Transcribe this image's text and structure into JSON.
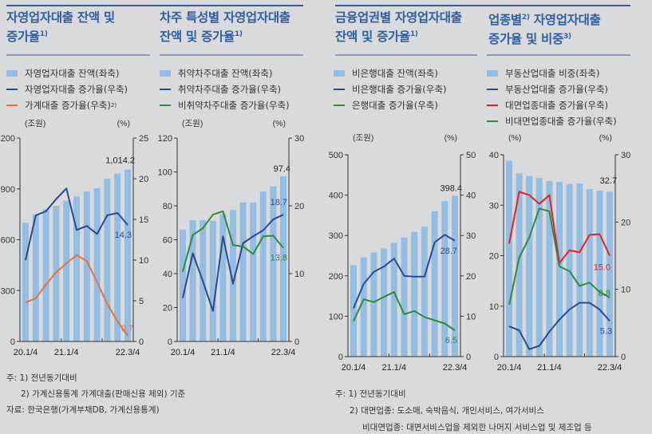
{
  "panels": [
    {
      "title_l1": "자영업자대출 잔액 및",
      "title_l2": "증가율",
      "title_sup": "1)",
      "legend": [
        {
          "label": "자영업자대출 잔액(좌축)",
          "sup": ""
        },
        {
          "label": "자영업자대출 증가율(우축)",
          "sup": ""
        },
        {
          "label": "가계대출 증가율(우축)",
          "sup": "2)"
        }
      ]
    },
    {
      "title_l1": "차주 특성별 자영업자대출",
      "title_l2": "잔액 및 증가율",
      "title_sup": "1)",
      "legend": [
        {
          "label": "취약차주대출 잔액(좌축)",
          "sup": ""
        },
        {
          "label": "취약차주대출 증가율(우축)",
          "sup": ""
        },
        {
          "label": "비취약차주대출 증가율(우축)",
          "sup": ""
        }
      ]
    },
    {
      "title_l1": "금융업권별 자영업자대출",
      "title_l2": "잔액 및 증가율",
      "title_sup": "1)",
      "legend": [
        {
          "label": "비은행대출 잔액(좌축)",
          "sup": ""
        },
        {
          "label": "비은행대출 증가율(우축)",
          "sup": ""
        },
        {
          "label": "은행대출 증가율(우축)",
          "sup": ""
        }
      ]
    },
    {
      "title_l1": "업종별",
      "title_l1_sup": "2)",
      "title_l1b": " 자영업자대출",
      "title_l2": "증가율 및 비중",
      "title_sup": "3)",
      "legend": [
        {
          "label": "부동산업대출 비중(좌축)",
          "sup": ""
        },
        {
          "label": "부동산업대출 증가율(우축)",
          "sup": ""
        },
        {
          "label": "대면업종대출 증가율(우축)",
          "sup": ""
        },
        {
          "label": "비대면업종대출 증가율(우축)",
          "sup": ""
        }
      ]
    }
  ],
  "notes_left": [
    "주: 1) 전년동기대비",
    "2) 가계신용통계 가계대출(판매신용 제외) 기준",
    "자료: 한국은행(가계부채DB, 가계신용통계)"
  ],
  "notes_right": [
    "주: 1) 전년동기대비",
    "2) 대면업종: 도소매, 숙박음식, 개인서비스, 여가서비스",
    "비대면업종: 대면서비스업을 제외한 나머지 서비스업 및 제조업 등"
  ],
  "colors": {
    "bar": "#93bde3",
    "navy": "#2b4a8b",
    "orange": "#e2733f",
    "green": "#2e8a3e",
    "red": "#e3202c",
    "title": "#2f5fa0"
  },
  "chart_data": [
    {
      "type": "bar+line",
      "left_unit": "(조원)",
      "right_unit": "(%)",
      "ylim_left": [
        0,
        1200
      ],
      "ylim_right": [
        0,
        25
      ],
      "left_ticks": [
        "0",
        "300",
        "600",
        "900",
        "1,200"
      ],
      "right_ticks": [
        "0",
        "5",
        "10",
        "15",
        "20",
        "25"
      ],
      "x_tick_labels": [
        "20.1/4",
        "21.1/4",
        "22.3/4"
      ],
      "bars": {
        "name": "자영업자대출 잔액(좌축)",
        "values": [
          700,
          750,
          780,
          800,
          830,
          855,
          885,
          905,
          960,
          990,
          1014.2
        ],
        "end_label": "1,014.2"
      },
      "lines": [
        {
          "name": "자영업자대출 증가율(우축)",
          "color": "navy",
          "values": [
            10.0,
            15.5,
            16.0,
            17.5,
            18.8,
            13.7,
            14.2,
            13.2,
            15.5,
            15.8,
            14.3
          ],
          "end_label": "14.3"
        },
        {
          "name": "가계대출 증가율(우축)",
          "color": "orange",
          "values": [
            4.8,
            5.3,
            7.0,
            8.5,
            9.6,
            10.6,
            9.9,
            7.3,
            4.6,
            2.5,
            0.7
          ],
          "end_label": "0.7"
        }
      ]
    },
    {
      "type": "bar+line",
      "left_unit": "(조원)",
      "right_unit": "(%)",
      "ylim_left": [
        0,
        120
      ],
      "ylim_right": [
        0,
        30
      ],
      "left_ticks": [
        "0",
        "20",
        "40",
        "60",
        "80",
        "100",
        "120"
      ],
      "right_ticks": [
        "0",
        "10",
        "20",
        "30"
      ],
      "x_tick_labels": [
        "20.1/4",
        "21.1/4",
        "22.3/4"
      ],
      "bars": {
        "name": "취약차주대출 잔액(좌축)",
        "values": [
          66,
          71.5,
          71.5,
          71,
          75,
          77.5,
          82,
          82,
          88.5,
          91.5,
          97.4
        ],
        "end_label": "97.4"
      },
      "lines": [
        {
          "name": "취약차주대출 증가율(우축)",
          "color": "navy",
          "values": [
            6.4,
            13.0,
            8.9,
            4.5,
            15.5,
            8.5,
            14.5,
            15.5,
            16.4,
            18.0,
            18.7
          ],
          "end_label": "18.7"
        },
        {
          "name": "비취약차주대출 증가율(우축)",
          "color": "green",
          "values": [
            10.3,
            15.7,
            16.7,
            18.7,
            19.2,
            14.2,
            14.0,
            12.9,
            15.5,
            15.6,
            13.8
          ],
          "end_label": "13.8"
        }
      ]
    },
    {
      "type": "bar+line",
      "left_unit": "(조원)",
      "right_unit": "(%)",
      "ylim_left": [
        0,
        500
      ],
      "ylim_right": [
        0,
        50
      ],
      "left_ticks": [
        "0",
        "100",
        "200",
        "300",
        "400",
        "500"
      ],
      "right_ticks": [
        "0",
        "10",
        "20",
        "30",
        "40",
        "50"
      ],
      "x_tick_labels": [
        "20.1/4",
        "21.1/4",
        "22.3/4"
      ],
      "bars": {
        "name": "비은행대출 잔액(좌축)",
        "values": [
          226,
          246,
          258,
          268,
          282,
          295,
          309,
          322,
          360,
          385,
          398.4
        ],
        "end_label": "398.4"
      },
      "lines": [
        {
          "name": "비은행대출 증가율(우축)",
          "color": "navy",
          "values": [
            12.0,
            18.0,
            21.0,
            22.3,
            24.3,
            20.0,
            19.8,
            19.8,
            28.3,
            30.2,
            28.7
          ],
          "end_label": "28.7"
        },
        {
          "name": "은행대출 증가율(우축)",
          "color": "green",
          "values": [
            8.8,
            14.2,
            13.5,
            14.8,
            16.0,
            10.5,
            11.3,
            9.8,
            9.0,
            8.2,
            6.5
          ],
          "end_label": "6.5"
        }
      ]
    },
    {
      "type": "bar+line",
      "left_unit": "(%)",
      "right_unit": "(%)",
      "ylim_left": [
        0,
        40
      ],
      "ylim_right": [
        0,
        30
      ],
      "left_ticks": [
        "0",
        "10",
        "20",
        "30",
        "40"
      ],
      "right_ticks": [
        "0",
        "10",
        "20",
        "30"
      ],
      "x_tick_labels": [
        "20.1/4",
        "21.1/4",
        "22.3/4"
      ],
      "bars": {
        "name": "부동산업대출 비중(좌축)",
        "values": [
          38.8,
          36.3,
          35.8,
          35.4,
          34.8,
          34.6,
          34.2,
          34.3,
          33.2,
          32.9,
          32.7
        ],
        "end_label": "32.7"
      },
      "lines": [
        {
          "name": "부동산업대출 증가율(우축)",
          "color": "navy",
          "values": [
            4.5,
            3.9,
            1.1,
            1.6,
            3.7,
            5.5,
            7.0,
            8.0,
            8.0,
            7.0,
            5.3
          ],
          "end_label": "5.3"
        },
        {
          "name": "대면업종대출 증가율(우축)",
          "color": "red",
          "values": [
            16.8,
            24.5,
            24.0,
            22.7,
            24.0,
            13.9,
            15.8,
            15.5,
            18.1,
            18.2,
            15.0
          ],
          "end_label": "15.0"
        },
        {
          "name": "비대면업종대출 증가율(우축)",
          "color": "green",
          "values": [
            7.7,
            14.7,
            17.7,
            22.0,
            21.6,
            13.4,
            12.7,
            10.5,
            11.0,
            9.6,
            8.8
          ],
          "end_label": "8.8"
        }
      ]
    }
  ]
}
